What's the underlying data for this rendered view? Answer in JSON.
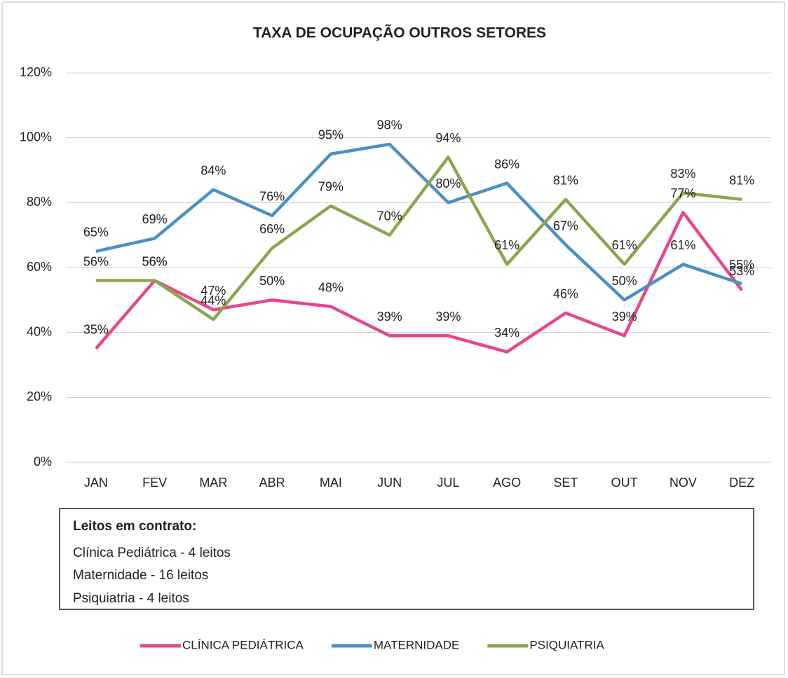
{
  "chart_data": {
    "type": "line",
    "title": "TAXA DE OCUPAÇÃO OUTROS SETORES",
    "categories": [
      "JAN",
      "FEV",
      "MAR",
      "ABR",
      "MAI",
      "JUN",
      "JUL",
      "AGO",
      "SET",
      "OUT",
      "NOV",
      "DEZ"
    ],
    "series": [
      {
        "name": "CLÍNICA PEDIÁTRICA",
        "color": "#e8468e",
        "values": [
          35,
          56,
          47,
          50,
          48,
          39,
          39,
          34,
          46,
          39,
          77,
          53
        ],
        "value_labels": [
          "35%",
          "56%",
          "47%",
          "50%",
          "48%",
          "39%",
          "39%",
          "34%",
          "46%",
          "39%",
          "77%",
          "53%"
        ]
      },
      {
        "name": "MATERNIDADE",
        "color": "#4a90c4",
        "values": [
          65,
          69,
          84,
          76,
          95,
          98,
          80,
          86,
          67,
          50,
          61,
          55
        ],
        "value_labels": [
          "65%",
          "69%",
          "84%",
          "76%",
          "95%",
          "98%",
          "80%",
          "86%",
          "67%",
          "50%",
          "61%",
          "55%"
        ]
      },
      {
        "name": "PSIQUIATRIA",
        "color": "#8aa64e",
        "values": [
          56,
          56,
          44,
          66,
          79,
          70,
          94,
          61,
          81,
          61,
          83,
          81
        ],
        "value_labels": [
          "56%",
          "56%",
          "44%",
          "66%",
          "79%",
          "70%",
          "94%",
          "61%",
          "81%",
          "61%",
          "83%",
          "81%"
        ]
      }
    ],
    "ylim": [
      0,
      120
    ],
    "yticks": [
      {
        "value": 0,
        "label": "0%"
      },
      {
        "value": 20,
        "label": "20%"
      },
      {
        "value": 40,
        "label": "40%"
      },
      {
        "value": 60,
        "label": "60%"
      },
      {
        "value": 80,
        "label": "80%"
      },
      {
        "value": 100,
        "label": "100%"
      },
      {
        "value": 120,
        "label": "120%"
      }
    ],
    "grid": true,
    "legend": "bottom",
    "note": {
      "title": "Leitos em contrato:",
      "lines": [
        "Clínica Pediátrica - 4 leitos",
        "Maternidade - 16 leitos",
        "Psiquiatria - 4 leitos"
      ]
    }
  }
}
